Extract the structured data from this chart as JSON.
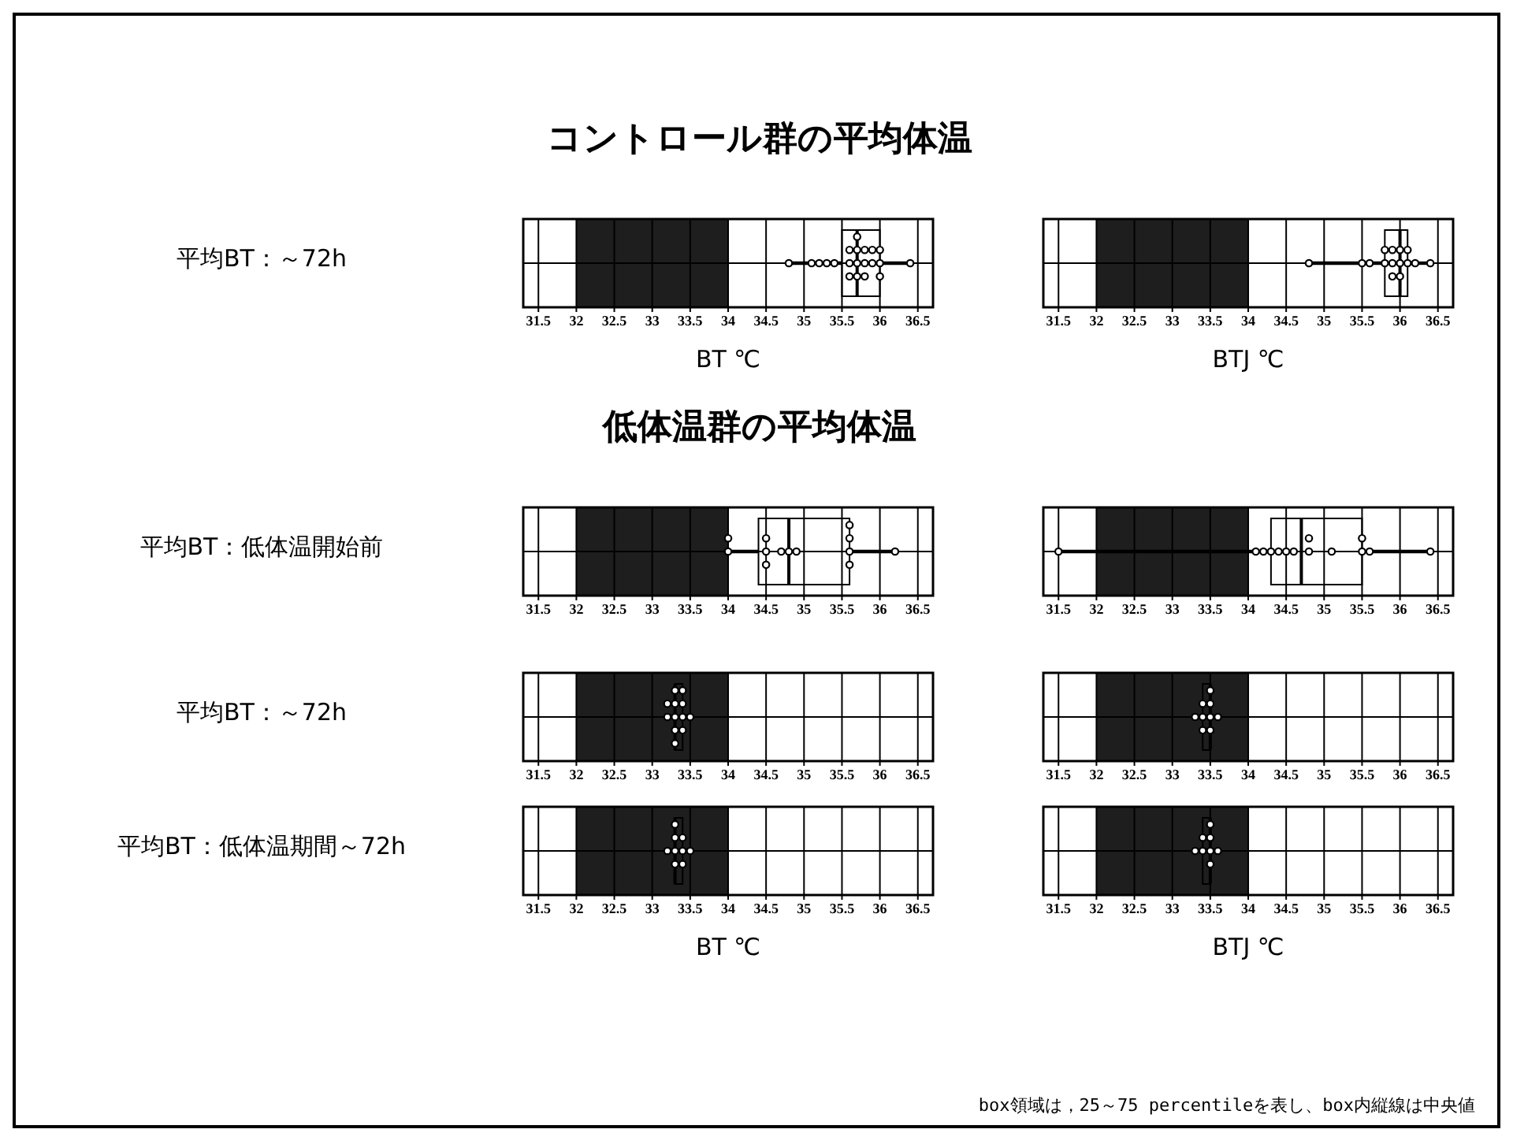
{
  "chart_data": [
    {
      "type": "box",
      "orientation": "horizontal",
      "title": "コントロール群の平均体温",
      "ylabel": "平均BT：～72h",
      "xlabel": "BT ℃",
      "categories": [
        null
      ],
      "boxes": [
        {
          "low": 34.8,
          "q1": 35.5,
          "median": 35.7,
          "q3": 36.0,
          "high": 36.4,
          "outliers": [
            34.8,
            35.1,
            35.2,
            35.3,
            35.4,
            35.6,
            35.6,
            35.6,
            35.7,
            35.7,
            35.7,
            35.7,
            35.8,
            35.8,
            35.8,
            35.9,
            35.9,
            36.0,
            36.0,
            36.0,
            36.4
          ]
        }
      ],
      "xlim": [
        31.3,
        36.7
      ],
      "xticks": [
        31.5,
        32,
        32.5,
        33,
        33.5,
        34,
        34.5,
        35,
        35.5,
        36,
        36.5
      ],
      "bands": [
        {
          "axis": "x",
          "from": 32,
          "to": 34,
          "color": "#1e1e1e"
        }
      ],
      "grid": true,
      "tick_labels": "x"
    },
    {
      "type": "box",
      "orientation": "horizontal",
      "xlabel": "BTJ ℃",
      "categories": [
        null
      ],
      "boxes": [
        {
          "low": 34.8,
          "q1": 35.8,
          "median": 36.0,
          "q3": 36.1,
          "high": 36.4,
          "outliers": [
            34.8,
            35.5,
            35.6,
            35.8,
            35.8,
            35.9,
            35.9,
            35.9,
            36.0,
            36.0,
            36.0,
            36.1,
            36.1,
            36.2,
            36.4
          ]
        }
      ],
      "xlim": [
        31.3,
        36.7
      ],
      "xticks": [
        31.5,
        32,
        32.5,
        33,
        33.5,
        34,
        34.5,
        35,
        35.5,
        36,
        36.5
      ],
      "bands": [
        {
          "axis": "x",
          "from": 32,
          "to": 34,
          "color": "#1e1e1e"
        }
      ],
      "grid": true,
      "tick_labels": "x"
    },
    {
      "type": "box",
      "orientation": "horizontal",
      "title": "低体温群の平均体温",
      "ylabel": "平均BT：低体温開始前",
      "categories": [
        null
      ],
      "boxes": [
        {
          "low": 34.0,
          "q1": 34.4,
          "median": 34.8,
          "q3": 35.6,
          "high": 36.2,
          "outliers": [
            34.0,
            34.0,
            34.5,
            34.5,
            34.5,
            34.7,
            34.8,
            34.9,
            35.6,
            35.6,
            35.6,
            35.6,
            36.2
          ]
        }
      ],
      "xlim": [
        31.3,
        36.7
      ],
      "xticks": [
        31.5,
        32,
        32.5,
        33,
        33.5,
        34,
        34.5,
        35,
        35.5,
        36,
        36.5
      ],
      "bands": [
        {
          "axis": "x",
          "from": 32,
          "to": 34,
          "color": "#1e1e1e"
        }
      ],
      "grid": true,
      "tick_labels": "x"
    },
    {
      "type": "box",
      "orientation": "horizontal",
      "categories": [
        null
      ],
      "boxes": [
        {
          "low": 31.5,
          "q1": 34.3,
          "median": 34.7,
          "q3": 35.5,
          "high": 36.4,
          "outliers": [
            31.5,
            34.1,
            34.2,
            34.3,
            34.4,
            34.5,
            34.6,
            34.8,
            34.8,
            35.1,
            35.5,
            35.5,
            35.6,
            36.4
          ]
        }
      ],
      "xlim": [
        31.3,
        36.7
      ],
      "xticks": [
        31.5,
        32,
        32.5,
        33,
        33.5,
        34,
        34.5,
        35,
        35.5,
        36,
        36.5
      ],
      "bands": [
        {
          "axis": "x",
          "from": 32,
          "to": 34,
          "color": "#1e1e1e"
        }
      ],
      "grid": true,
      "tick_labels": "x"
    },
    {
      "type": "box",
      "orientation": "horizontal",
      "ylabel": "平均BT：～72h",
      "categories": [
        null
      ],
      "boxes": [
        {
          "low": 33.2,
          "q1": 33.3,
          "median": 33.3,
          "q3": 33.4,
          "high": 33.5,
          "outliers": [
            33.2,
            33.2,
            33.3,
            33.3,
            33.3,
            33.3,
            33.3,
            33.4,
            33.4,
            33.4,
            33.4,
            33.5
          ]
        }
      ],
      "xlim": [
        31.3,
        36.7
      ],
      "xticks": [
        31.5,
        32,
        32.5,
        33,
        33.5,
        34,
        34.5,
        35,
        35.5,
        36,
        36.5
      ],
      "bands": [
        {
          "axis": "x",
          "from": 32,
          "to": 34,
          "color": "#1e1e1e"
        }
      ],
      "grid": true,
      "tick_labels": "x"
    },
    {
      "type": "box",
      "orientation": "horizontal",
      "categories": [
        null
      ],
      "boxes": [
        {
          "low": 33.3,
          "q1": 33.4,
          "median": 33.5,
          "q3": 33.5,
          "high": 33.6,
          "outliers": [
            33.3,
            33.4,
            33.4,
            33.4,
            33.5,
            33.5,
            33.5,
            33.5,
            33.6
          ]
        }
      ],
      "xlim": [
        31.3,
        36.7
      ],
      "xticks": [
        31.5,
        32,
        32.5,
        33,
        33.5,
        34,
        34.5,
        35,
        35.5,
        36,
        36.5
      ],
      "bands": [
        {
          "axis": "x",
          "from": 32,
          "to": 34,
          "color": "#1e1e1e"
        }
      ],
      "grid": true,
      "tick_labels": "x"
    },
    {
      "type": "box",
      "orientation": "horizontal",
      "ylabel": "平均BT：低体温期間～72h",
      "xlabel": "BT ℃",
      "categories": [
        null
      ],
      "boxes": [
        {
          "low": 33.2,
          "q1": 33.3,
          "median": 33.3,
          "q3": 33.4,
          "high": 33.5,
          "outliers": [
            33.2,
            33.3,
            33.3,
            33.3,
            33.3,
            33.4,
            33.4,
            33.4,
            33.5
          ]
        }
      ],
      "xlim": [
        31.3,
        36.7
      ],
      "xticks": [
        31.5,
        32,
        32.5,
        33,
        33.5,
        34,
        34.5,
        35,
        35.5,
        36,
        36.5
      ],
      "bands": [
        {
          "axis": "x",
          "from": 32,
          "to": 34,
          "color": "#1e1e1e"
        }
      ],
      "grid": true,
      "tick_labels": "x"
    },
    {
      "type": "box",
      "orientation": "horizontal",
      "xlabel": "BTJ ℃",
      "annotations": [
        "box領域は，25～75 percentileを表し、box内縦線は中央値"
      ],
      "categories": [
        null
      ],
      "boxes": [
        {
          "low": 33.3,
          "q1": 33.4,
          "median": 33.5,
          "q3": 33.5,
          "high": 33.6,
          "outliers": [
            33.3,
            33.4,
            33.4,
            33.5,
            33.5,
            33.5,
            33.5,
            33.6
          ]
        }
      ],
      "xlim": [
        31.3,
        36.7
      ],
      "xticks": [
        31.5,
        32,
        32.5,
        33,
        33.5,
        34,
        34.5,
        35,
        35.5,
        36,
        36.5
      ],
      "bands": [
        {
          "axis": "x",
          "from": 32,
          "to": 34,
          "color": "#1e1e1e"
        }
      ],
      "grid": true,
      "tick_labels": "x"
    }
  ]
}
